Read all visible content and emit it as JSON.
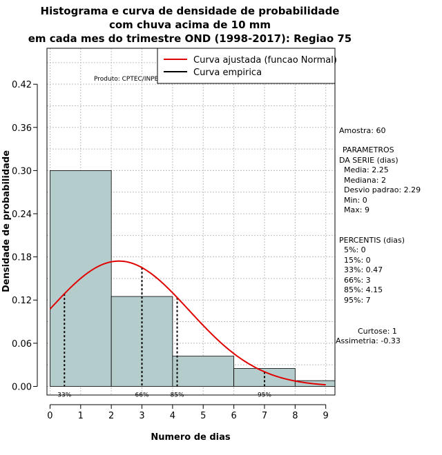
{
  "chart_data": {
    "type": "bar",
    "title_lines": [
      "Histograma e curva de densidade de probabilidade",
      "com chuva acima de 10 mm",
      "em cada mes do trimestre OND (1998-2017): Regiao 75"
    ],
    "xlabel": "Numero de dias",
    "ylabel": "Densidade de probabilidade",
    "xlim": [
      -0.1,
      9.3
    ],
    "ylim": [
      -0.012,
      0.47
    ],
    "x_ticks": [
      0,
      1,
      2,
      3,
      4,
      5,
      6,
      7,
      8,
      9
    ],
    "y_ticks": [
      0.0,
      0.06,
      0.12,
      0.18,
      0.24,
      0.3,
      0.36,
      0.42
    ],
    "y_tick_labels": [
      "0.00",
      "0.06",
      "0.12",
      "0.18",
      "0.24",
      "0.30",
      "0.36",
      "0.42"
    ],
    "bins": [
      {
        "from": 0,
        "to": 2,
        "density": 0.3
      },
      {
        "from": 2,
        "to": 4,
        "density": 0.125
      },
      {
        "from": 4,
        "to": 6,
        "density": 0.042
      },
      {
        "from": 6,
        "to": 8,
        "density": 0.025
      },
      {
        "from": 8,
        "to": 10,
        "density": 0.008
      }
    ],
    "normal_curve": {
      "mean": 2.25,
      "sd": 2.29,
      "x_from": 0,
      "x_to": 9,
      "name": "Curva ajustada (funcao Normal)",
      "color": "#e00000"
    },
    "empirical_name": "Curva empirica",
    "percentile_markers": [
      {
        "x": 0.47,
        "label": "33%"
      },
      {
        "x": 3,
        "label": "66%"
      },
      {
        "x": 4.15,
        "label": "85%"
      },
      {
        "x": 7,
        "label": "95%"
      }
    ],
    "bar_color": "#b5cccc",
    "legend_position": "top-right"
  },
  "produto": "Produto: CPTEC/INPE",
  "stats": {
    "amostra": "Amostra: 60",
    "param_header_1": "PARAMETROS",
    "param_header_2": "DA SERIE (dias)",
    "media": "Media: 2.25",
    "mediana": "Mediana: 2",
    "desvio": "Desvio padrao: 2.29",
    "min": "Min: 0",
    "max": "Max: 9",
    "percentis_header": "PERCENTIS (dias)",
    "p5": "5%: 0",
    "p15": "15%: 0",
    "p33": "33%: 0.47",
    "p66": "66%: 3",
    "p85": "85%: 4.15",
    "p95": "95%: 7",
    "curtose": "Curtose: 1",
    "assimetria": "Assimetria: -0.33"
  }
}
